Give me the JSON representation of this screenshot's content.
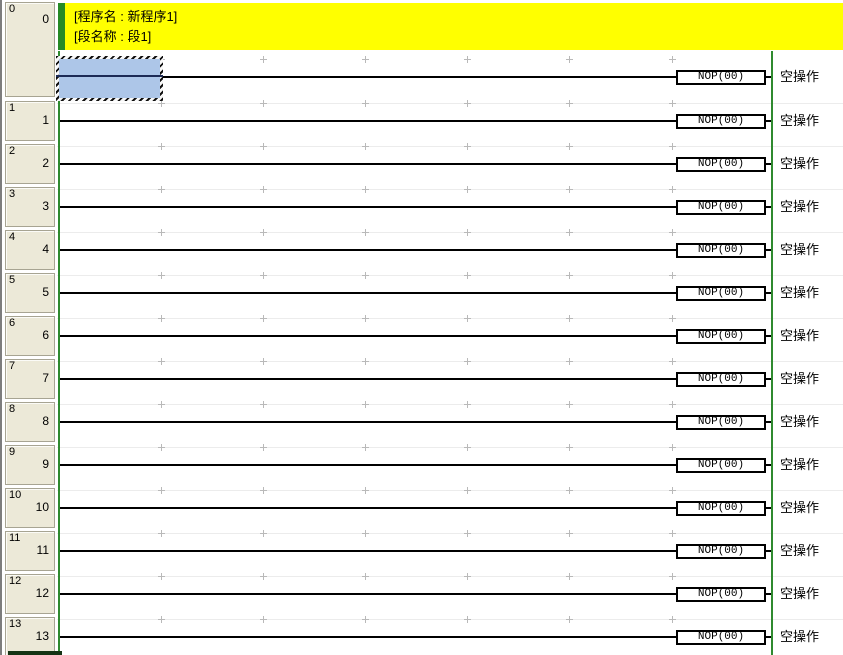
{
  "banner": {
    "program_label": "[程序名 : 新程序1]",
    "section_label": "[段名称 : 段1]"
  },
  "rungs": [
    {
      "index": "0",
      "number": "0",
      "instruction": "NOP(00)",
      "comment": "空操作",
      "selected": true
    },
    {
      "index": "1",
      "number": "1",
      "instruction": "NOP(00)",
      "comment": "空操作",
      "selected": false
    },
    {
      "index": "2",
      "number": "2",
      "instruction": "NOP(00)",
      "comment": "空操作",
      "selected": false
    },
    {
      "index": "3",
      "number": "3",
      "instruction": "NOP(00)",
      "comment": "空操作",
      "selected": false
    },
    {
      "index": "4",
      "number": "4",
      "instruction": "NOP(00)",
      "comment": "空操作",
      "selected": false
    },
    {
      "index": "5",
      "number": "5",
      "instruction": "NOP(00)",
      "comment": "空操作",
      "selected": false
    },
    {
      "index": "6",
      "number": "6",
      "instruction": "NOP(00)",
      "comment": "空操作",
      "selected": false
    },
    {
      "index": "7",
      "number": "7",
      "instruction": "NOP(00)",
      "comment": "空操作",
      "selected": false
    },
    {
      "index": "8",
      "number": "8",
      "instruction": "NOP(00)",
      "comment": "空操作",
      "selected": false
    },
    {
      "index": "9",
      "number": "9",
      "instruction": "NOP(00)",
      "comment": "空操作",
      "selected": false
    },
    {
      "index": "10",
      "number": "10",
      "instruction": "NOP(00)",
      "comment": "空操作",
      "selected": false
    },
    {
      "index": "11",
      "number": "11",
      "instruction": "NOP(00)",
      "comment": "空操作",
      "selected": false
    },
    {
      "index": "12",
      "number": "12",
      "instruction": "NOP(00)",
      "comment": "空操作",
      "selected": false
    },
    {
      "index": "13",
      "number": "13",
      "instruction": "NOP(00)",
      "comment": "空操作",
      "selected": false
    }
  ],
  "colors": {
    "banner_bg": "#ffff00",
    "banner_bar_green": "#268a26",
    "bus_green": "#2f8a2f",
    "selection_fill": "#adc6e8",
    "number_cell_bg": "#ece9d8"
  }
}
